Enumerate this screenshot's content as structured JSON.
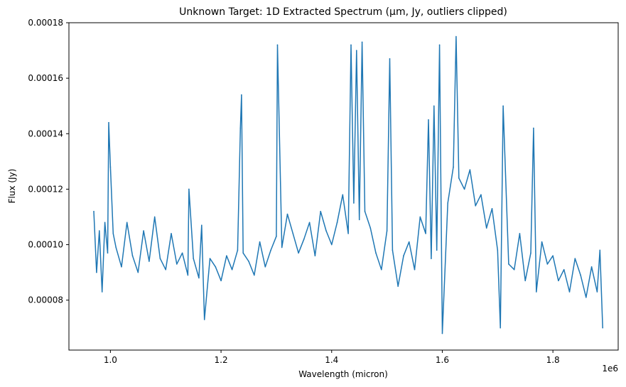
{
  "chart_data": {
    "type": "line",
    "title": "Unknown Target: 1D Extracted Spectrum (µm, Jy, outliers clipped)",
    "xlabel": "Wavelength (micron)",
    "ylabel": "Flux (Jy)",
    "x_offset_label": "1e6",
    "xlim": [
      0.925,
      1.918
    ],
    "ylim": [
      6.2e-05,
      0.00018
    ],
    "x_ticks": [
      1.0,
      1.2,
      1.4,
      1.6,
      1.8
    ],
    "x_tick_labels": [
      "1.0",
      "1.2",
      "1.4",
      "1.6",
      "1.8"
    ],
    "y_ticks": [
      8e-05,
      0.0001,
      0.00012,
      0.00014,
      0.00016,
      0.00018
    ],
    "y_tick_labels": [
      "0.00008",
      "0.00010",
      "0.00012",
      "0.00014",
      "0.00016",
      "0.00018"
    ],
    "grid": false,
    "line_color": "#1f77b4",
    "series": [
      {
        "x": [
          0.97,
          0.975,
          0.98,
          0.985,
          0.99,
          0.995,
          0.997,
          1.0,
          1.005,
          1.01,
          1.02,
          1.03,
          1.04,
          1.05,
          1.06,
          1.07,
          1.08,
          1.09,
          1.1,
          1.11,
          1.12,
          1.13,
          1.14,
          1.142,
          1.15,
          1.16,
          1.165,
          1.17,
          1.18,
          1.19,
          1.2,
          1.21,
          1.22,
          1.23,
          1.235,
          1.237,
          1.24,
          1.25,
          1.26,
          1.27,
          1.28,
          1.29,
          1.3,
          1.302,
          1.31,
          1.32,
          1.33,
          1.34,
          1.35,
          1.36,
          1.37,
          1.38,
          1.39,
          1.4,
          1.41,
          1.42,
          1.43,
          1.435,
          1.44,
          1.445,
          1.45,
          1.455,
          1.46,
          1.47,
          1.48,
          1.49,
          1.5,
          1.505,
          1.51,
          1.52,
          1.53,
          1.54,
          1.55,
          1.56,
          1.57,
          1.575,
          1.58,
          1.585,
          1.59,
          1.595,
          1.6,
          1.61,
          1.62,
          1.625,
          1.63,
          1.64,
          1.65,
          1.66,
          1.67,
          1.68,
          1.69,
          1.7,
          1.705,
          1.71,
          1.72,
          1.73,
          1.74,
          1.75,
          1.76,
          1.765,
          1.77,
          1.78,
          1.79,
          1.8,
          1.81,
          1.82,
          1.83,
          1.84,
          1.85,
          1.86,
          1.87,
          1.88,
          1.885,
          1.89
        ],
        "y": [
          0.000112,
          9e-05,
          0.000105,
          8.3e-05,
          0.000108,
          9.7e-05,
          0.000144,
          0.000128,
          0.000104,
          9.9e-05,
          9.2e-05,
          0.000108,
          9.6e-05,
          9e-05,
          0.000105,
          9.4e-05,
          0.00011,
          9.5e-05,
          9.1e-05,
          0.000104,
          9.3e-05,
          9.7e-05,
          8.9e-05,
          0.00012,
          9.5e-05,
          8.8e-05,
          0.000107,
          7.3e-05,
          9.5e-05,
          9.2e-05,
          8.7e-05,
          9.6e-05,
          9.1e-05,
          9.8e-05,
          0.000142,
          0.000154,
          9.7e-05,
          9.4e-05,
          8.9e-05,
          0.000101,
          9.2e-05,
          9.8e-05,
          0.000103,
          0.000172,
          9.9e-05,
          0.000111,
          0.000104,
          9.7e-05,
          0.000102,
          0.000108,
          9.6e-05,
          0.000112,
          0.000105,
          0.0001,
          0.000108,
          0.000118,
          0.000104,
          0.000172,
          0.000115,
          0.00017,
          0.000109,
          0.000173,
          0.000112,
          0.000106,
          9.7e-05,
          9.1e-05,
          0.000105,
          0.000167,
          9.8e-05,
          8.5e-05,
          9.6e-05,
          0.000101,
          9.1e-05,
          0.00011,
          0.000104,
          0.000145,
          9.5e-05,
          0.00015,
          9.8e-05,
          0.000172,
          6.8e-05,
          0.000115,
          0.000128,
          0.000175,
          0.000124,
          0.00012,
          0.000127,
          0.000114,
          0.000118,
          0.000106,
          0.000113,
          9.8e-05,
          7e-05,
          0.00015,
          9.3e-05,
          9.1e-05,
          0.000104,
          8.7e-05,
          9.7e-05,
          0.000142,
          8.3e-05,
          0.000101,
          9.3e-05,
          9.6e-05,
          8.7e-05,
          9.1e-05,
          8.3e-05,
          9.5e-05,
          8.9e-05,
          8.1e-05,
          9.2e-05,
          8.3e-05,
          9.8e-05,
          7e-05
        ]
      }
    ]
  }
}
